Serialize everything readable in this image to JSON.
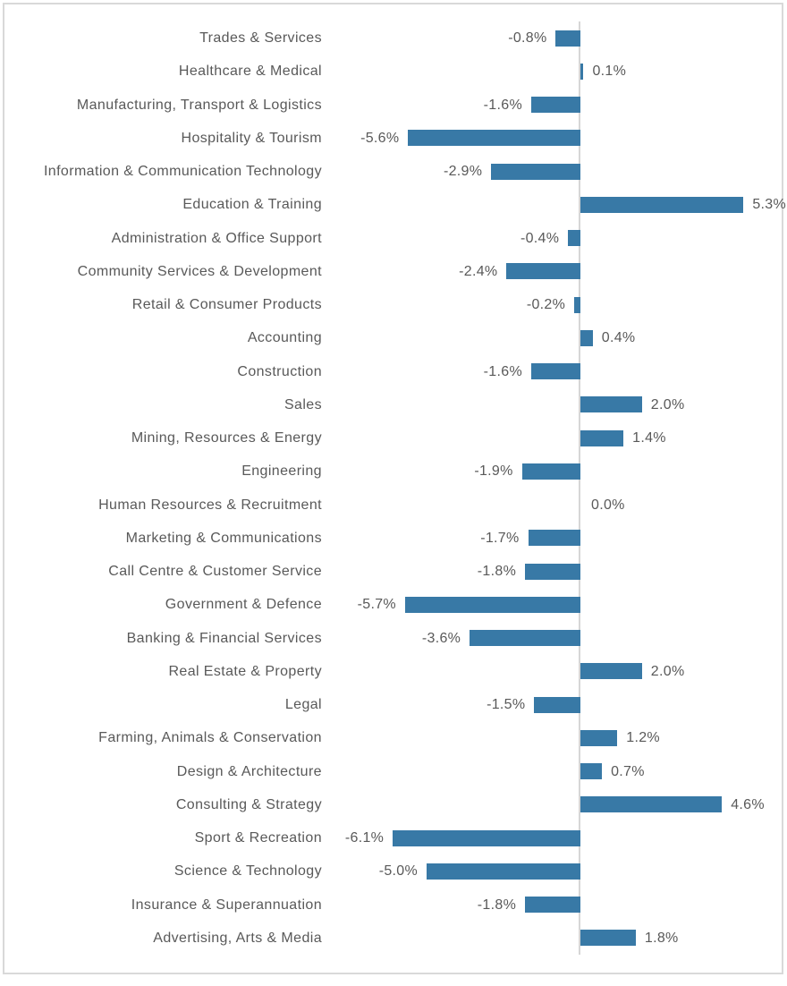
{
  "chart_data": {
    "type": "bar",
    "orientation": "horizontal",
    "title": "",
    "xlabel": "",
    "ylabel": "",
    "grid": false,
    "legend": null,
    "zero_axis_line": true,
    "xlim": [
      -6.7,
      6.7
    ],
    "categories": [
      "Trades & Services",
      "Healthcare & Medical",
      "Manufacturing, Transport & Logistics",
      "Hospitality & Tourism",
      "Information & Communication Technology",
      "Education & Training",
      "Administration & Office Support",
      "Community Services & Development",
      "Retail & Consumer Products",
      "Accounting",
      "Construction",
      "Sales",
      "Mining, Resources & Energy",
      "Engineering",
      "Human Resources & Recruitment",
      "Marketing & Communications",
      "Call Centre & Customer Service",
      "Government & Defence",
      "Banking & Financial Services",
      "Real Estate & Property",
      "Legal",
      "Farming, Animals & Conservation",
      "Design & Architecture",
      "Consulting & Strategy",
      "Sport & Recreation",
      "Science & Technology",
      "Insurance & Superannuation",
      "Advertising, Arts & Media"
    ],
    "values": [
      -0.8,
      0.1,
      -1.6,
      -5.6,
      -2.9,
      5.3,
      -0.4,
      -2.4,
      -0.2,
      0.4,
      -1.6,
      2.0,
      1.4,
      -1.9,
      0.0,
      -1.7,
      -1.8,
      -5.7,
      -3.6,
      2.0,
      -1.5,
      1.2,
      0.7,
      4.6,
      -6.1,
      -5.0,
      -1.8,
      1.8
    ],
    "value_labels": [
      "-0.8%",
      "0.1%",
      "-1.6%",
      "-5.6%",
      "-2.9%",
      "5.3%",
      "-0.4%",
      "-2.4%",
      "-0.2%",
      "0.4%",
      "-1.6%",
      "2.0%",
      "1.4%",
      "-1.9%",
      "0.0%",
      "-1.7%",
      "-1.8%",
      "-5.7%",
      "-3.6%",
      "2.0%",
      "-1.5%",
      "1.2%",
      "0.7%",
      "4.6%",
      "-6.1%",
      "-5.0%",
      "-1.8%",
      "1.8%"
    ],
    "colors": {
      "bar": "#3879a6",
      "zero_line": "#d6d6d6",
      "frame_border": "#d9d9d9",
      "category_label": "#595959",
      "value_label": "#595959",
      "background": "#ffffff"
    }
  }
}
